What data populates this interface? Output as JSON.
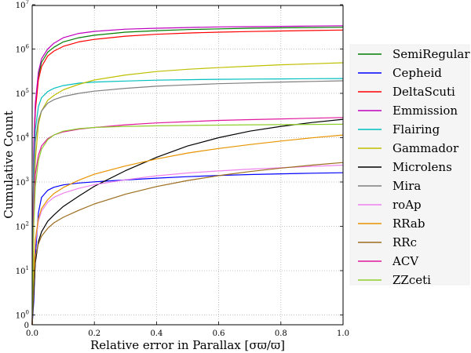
{
  "chart_data": {
    "type": "line",
    "title": "",
    "xlabel": "Relative error in Parallax [σϖ/ϖ]",
    "ylabel": "Cumulative Count",
    "xlim": [
      0.0,
      1.0
    ],
    "ylim": [
      0,
      10000000
    ],
    "yscale": "symlog",
    "grid": true,
    "legend_position": "right",
    "x_ticks": [
      "0.0",
      "0.2",
      "0.4",
      "0.6",
      "0.8",
      "1.0"
    ],
    "y_ticks": [
      {
        "base": "",
        "exp": "",
        "plain": "0"
      },
      {
        "base": "10",
        "exp": "0"
      },
      {
        "base": "10",
        "exp": "1"
      },
      {
        "base": "10",
        "exp": "2"
      },
      {
        "base": "10",
        "exp": "3"
      },
      {
        "base": "10",
        "exp": "4"
      },
      {
        "base": "10",
        "exp": "5"
      },
      {
        "base": "10",
        "exp": "6"
      },
      {
        "base": "10",
        "exp": "7"
      }
    ],
    "x": [
      0.0,
      0.005,
      0.01,
      0.02,
      0.03,
      0.05,
      0.07,
      0.1,
      0.15,
      0.2,
      0.3,
      0.4,
      0.5,
      0.6,
      0.7,
      0.8,
      0.9,
      1.0
    ],
    "series": [
      {
        "name": "SemiRegular",
        "color": "#007f00",
        "values": [
          0,
          5000,
          50000,
          250000,
          500000,
          850000,
          1100000,
          1450000,
          1800000,
          2050000,
          2400000,
          2600000,
          2750000,
          2850000,
          2950000,
          3000000,
          3050000,
          3100000
        ]
      },
      {
        "name": "Cepheid",
        "color": "#0000ff",
        "values": [
          0,
          2,
          20,
          200,
          450,
          650,
          760,
          860,
          950,
          1010,
          1110,
          1220,
          1320,
          1400,
          1470,
          1530,
          1580,
          1620
        ]
      },
      {
        "name": "DeltaScuti",
        "color": "#ff0000",
        "values": [
          0,
          4000,
          40000,
          200000,
          400000,
          700000,
          900000,
          1150000,
          1450000,
          1650000,
          1950000,
          2150000,
          2300000,
          2400000,
          2480000,
          2550000,
          2620000,
          2680000
        ]
      },
      {
        "name": "Emmission",
        "color": "#bf00bf",
        "values": [
          0,
          6000,
          60000,
          300000,
          600000,
          1000000,
          1350000,
          1800000,
          2250000,
          2500000,
          2800000,
          2950000,
          3050000,
          3150000,
          3200000,
          3250000,
          3300000,
          3350000
        ]
      },
      {
        "name": "Flairing",
        "color": "#00bfbf",
        "values": [
          0,
          2000,
          15000,
          50000,
          80000,
          110000,
          130000,
          150000,
          170000,
          180000,
          190000,
          198000,
          203000,
          207000,
          210000,
          212000,
          214000,
          216000
        ]
      },
      {
        "name": "Gammador",
        "color": "#bfbf00",
        "values": [
          0,
          300,
          3000,
          20000,
          40000,
          70000,
          90000,
          120000,
          160000,
          200000,
          260000,
          310000,
          350000,
          380000,
          410000,
          440000,
          465000,
          490000
        ]
      },
      {
        "name": "Microlens",
        "color": "#000000",
        "values": [
          0,
          3,
          15,
          45,
          75,
          130,
          180,
          280,
          480,
          800,
          1800,
          3600,
          6500,
          10000,
          14000,
          18000,
          22000,
          26000
        ]
      },
      {
        "name": "Mira",
        "color": "#7f7f7f",
        "values": [
          0,
          800,
          8000,
          25000,
          40000,
          60000,
          72000,
          85000,
          100000,
          112000,
          130000,
          145000,
          155000,
          165000,
          172000,
          180000,
          186000,
          192000
        ]
      },
      {
        "name": "roAp",
        "color": "#ee82ee",
        "values": [
          0,
          10,
          40,
          130,
          220,
          350,
          450,
          560,
          720,
          870,
          1120,
          1380,
          1600,
          1780,
          1950,
          2100,
          2250,
          2400
        ]
      },
      {
        "name": "RRab",
        "color": "#e89400",
        "values": [
          0,
          10,
          50,
          150,
          250,
          400,
          550,
          750,
          1100,
          1500,
          2300,
          3300,
          4500,
          5700,
          7000,
          8400,
          9900,
          11500
        ]
      },
      {
        "name": "RRc",
        "color": "#9b6c1c",
        "values": [
          0,
          5,
          20,
          40,
          60,
          90,
          120,
          160,
          230,
          320,
          530,
          790,
          1080,
          1390,
          1720,
          2060,
          2400,
          2750
        ]
      },
      {
        "name": "ACV",
        "color": "#e0179c",
        "values": [
          0,
          200,
          1500,
          4000,
          6500,
          9500,
          11500,
          13500,
          15500,
          17000,
          19500,
          21500,
          23000,
          24500,
          25500,
          26500,
          27500,
          28500
        ]
      },
      {
        "name": "ZZceti",
        "color": "#8fce2b",
        "values": [
          0,
          100,
          800,
          3000,
          5500,
          9000,
          11500,
          14000,
          16000,
          17000,
          18000,
          18500,
          18900,
          19200,
          19500,
          19700,
          19900,
          20100
        ]
      }
    ]
  }
}
